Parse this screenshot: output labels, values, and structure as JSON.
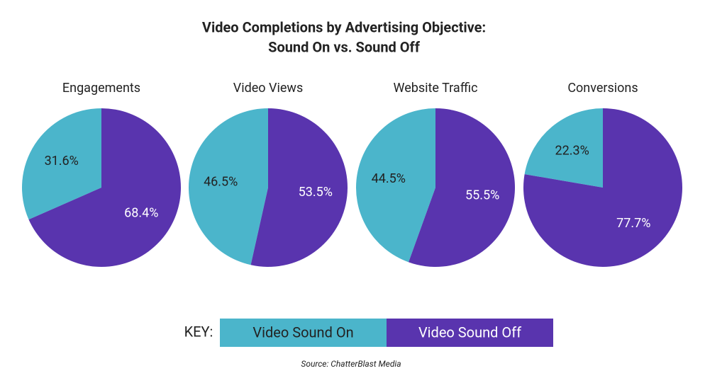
{
  "title": [
    "Video Completions by Advertising Objective:",
    "Sound On vs. Sound Off"
  ],
  "key": "KEY:",
  "source": "Source: ChatterBlast Media",
  "chart_data": [
    {
      "type": "pie",
      "title": "Engagements",
      "categories": [
        "Video Sound On",
        "Video Sound Off"
      ],
      "values": [
        31.6,
        68.4
      ],
      "value_labels": [
        "31.6%",
        "68.4%"
      ],
      "colors": [
        "#4bb5cb",
        "#5934ae"
      ]
    },
    {
      "type": "pie",
      "title": "Video Views",
      "categories": [
        "Video Sound On",
        "Video Sound Off"
      ],
      "values": [
        46.5,
        53.5
      ],
      "value_labels": [
        "46.5%",
        "53.5%"
      ],
      "colors": [
        "#4bb5cb",
        "#5934ae"
      ]
    },
    {
      "type": "pie",
      "title": "Website Traffic",
      "categories": [
        "Video Sound On",
        "Video Sound Off"
      ],
      "values": [
        44.5,
        55.5
      ],
      "value_labels": [
        "44.5%",
        "55.5%"
      ],
      "colors": [
        "#4bb5cb",
        "#5934ae"
      ]
    },
    {
      "type": "pie",
      "title": "Conversions",
      "categories": [
        "Video Sound On",
        "Video Sound Off"
      ],
      "values": [
        22.3,
        77.7
      ],
      "value_labels": [
        "22.3%",
        "77.7%"
      ],
      "colors": [
        "#4bb5cb",
        "#5934ae"
      ]
    }
  ]
}
